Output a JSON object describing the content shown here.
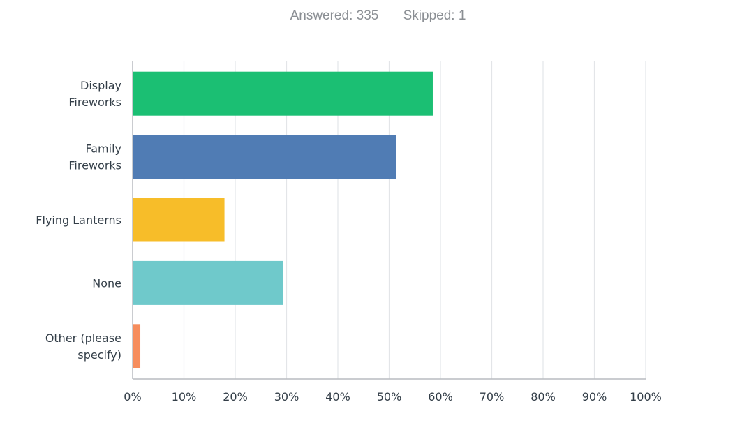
{
  "summary": {
    "answered_label": "Answered: 335",
    "skipped_label": "Skipped: 1"
  },
  "chart_data": {
    "type": "bar",
    "orientation": "horizontal",
    "categories": [
      [
        "Display",
        "Fireworks"
      ],
      [
        "Family",
        "Fireworks"
      ],
      [
        "Flying Lanterns"
      ],
      [
        "None"
      ],
      [
        "Other (please",
        "specify)"
      ]
    ],
    "values": [
      58.5,
      51.3,
      17.9,
      29.3,
      1.5
    ],
    "colors": [
      "#1bbf73",
      "#507cb4",
      "#f7bd29",
      "#6fc9cb",
      "#f68d5d"
    ],
    "xlim": [
      0,
      100
    ],
    "xticks": [
      "0%",
      "10%",
      "20%",
      "30%",
      "40%",
      "50%",
      "60%",
      "70%",
      "80%",
      "90%",
      "100%"
    ],
    "grid": true,
    "title": "",
    "xlabel": "",
    "ylabel": ""
  }
}
